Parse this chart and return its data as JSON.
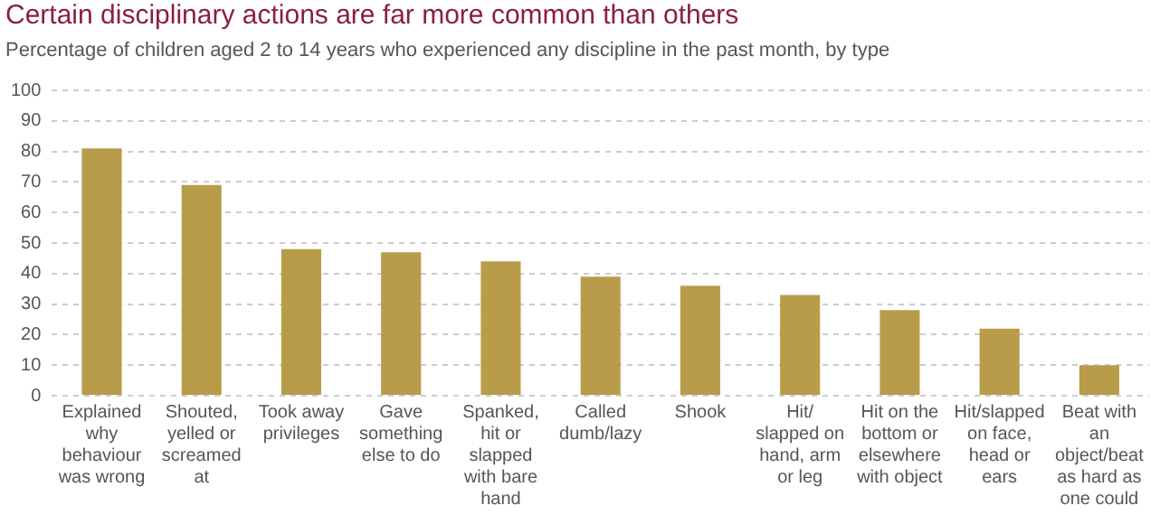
{
  "chart_data": {
    "type": "bar",
    "title": "Certain disciplinary actions are far more common than others",
    "subtitle": "Percentage of children aged 2 to 14 years who experienced any discipline in the past month, by type",
    "categories": [
      "Explained why behaviour was wrong",
      "Shouted, yelled or screamed at",
      "Took away privileges",
      "Gave something else to do",
      "Spanked, hit or slapped with bare hand",
      "Called dumb/lazy",
      "Shook",
      "Hit/ slapped on hand, arm or leg",
      "Hit on the bottom or elsewhere with object",
      "Hit/slapped on face, head or ears",
      "Beat with an object/beat as hard as one could"
    ],
    "values": [
      81,
      69,
      48,
      47,
      44,
      39,
      36,
      33,
      28,
      22,
      10
    ],
    "color": "#b89c4a",
    "ylim": [
      0,
      100
    ],
    "yticks": [
      0,
      10,
      20,
      30,
      40,
      50,
      60,
      70,
      80,
      90,
      100
    ],
    "grid": "y"
  }
}
